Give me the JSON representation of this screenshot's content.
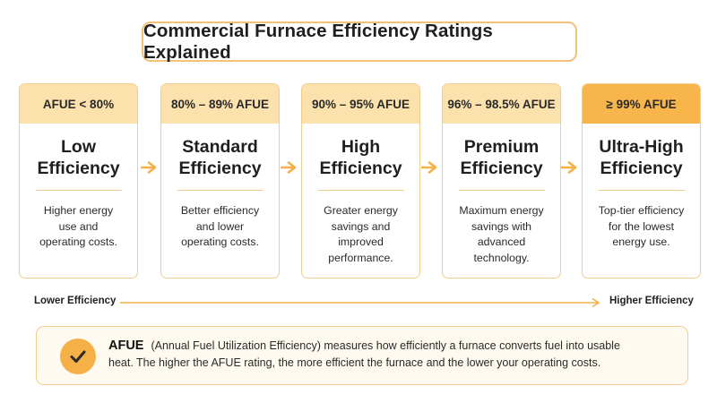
{
  "title": "Commercial Furnace Efficiency Ratings Explained",
  "tiers": [
    {
      "range": "AFUE < 80%",
      "name_line1": "Low",
      "name_line2": "Efficiency",
      "desc": [
        "Higher energy",
        "use and",
        "operating costs."
      ]
    },
    {
      "range": "80% – 89% AFUE",
      "name_line1": "Standard",
      "name_line2": "Efficiency",
      "desc": [
        "Better efficiency",
        "and lower",
        "operating costs."
      ]
    },
    {
      "range": "90% – 95% AFUE",
      "name_line1": "High",
      "name_line2": "Efficiency",
      "desc": [
        "Greater energy",
        "savings and",
        "improved",
        "performance."
      ]
    },
    {
      "range": "96% – 98.5% AFUE",
      "name_line1": "Premium",
      "name_line2": "Efficiency",
      "desc": [
        "Maximum energy",
        "savings with",
        "advanced",
        "technology."
      ]
    },
    {
      "range": "≥ 99% AFUE",
      "name_line1": "Ultra-High",
      "name_line2": "Efficiency",
      "desc": [
        "Top-tier efficiency",
        "for the lowest",
        "energy use."
      ]
    }
  ],
  "scale": {
    "left": "Lower Efficiency",
    "right": "Higher Efficiency"
  },
  "info": {
    "term": "AFUE",
    "line1": "(Annual Fuel Utilization Efficiency) measures how efficiently a furnace converts fuel into usable",
    "line2": "heat. The higher the AFUE rating, the more efficient the furnace and the lower your operating costs."
  },
  "colors": {
    "accent": "#f5b048",
    "header_fill": "#fbe2ad",
    "header_highlight": "#f7b54c",
    "border": "#f2cd8f"
  },
  "icons": {
    "flow": "arrow-right-icon",
    "info": "check-icon"
  }
}
